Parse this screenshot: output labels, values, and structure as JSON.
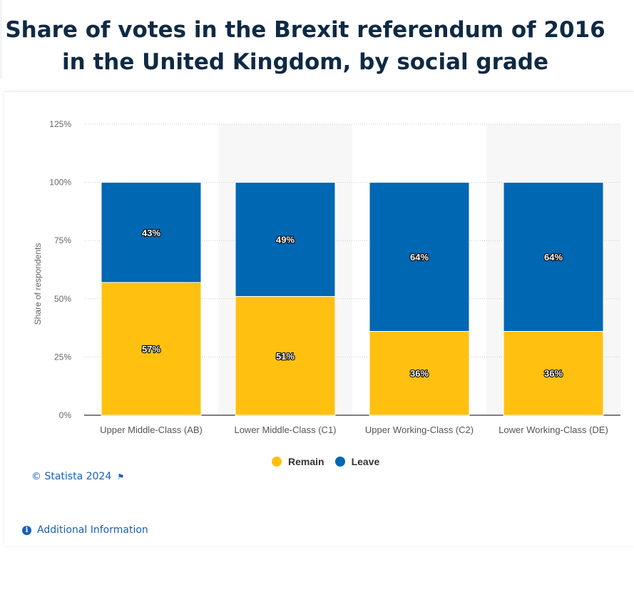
{
  "title_lines": [
    "Share of votes in the Brexit referendum of 2016",
    "in the United Kingdom, by social grade"
  ],
  "footer": {
    "copyright": "© Statista 2024",
    "additional_info": "Additional Information"
  },
  "chart_data": {
    "type": "bar",
    "stacked": true,
    "title": "Share of votes in the Brexit referendum of 2016 in the United Kingdom, by social grade",
    "xlabel": "",
    "ylabel": "Share of respondents",
    "ylim": [
      0,
      125
    ],
    "yticks": [
      0,
      25,
      50,
      75,
      100,
      125
    ],
    "ytick_suffix": "%",
    "grid": true,
    "legend_position": "bottom",
    "categories": [
      "Upper Middle-Class (AB)",
      "Lower Middle-Class (C1)",
      "Upper Working-Class (C2)",
      "Lower Working-Class (DE)"
    ],
    "series": [
      {
        "name": "Remain",
        "color": "#ffc010",
        "values": [
          57,
          51,
          36,
          36
        ]
      },
      {
        "name": "Leave",
        "color": "#0067b3",
        "values": [
          43,
          49,
          64,
          64
        ]
      }
    ]
  }
}
